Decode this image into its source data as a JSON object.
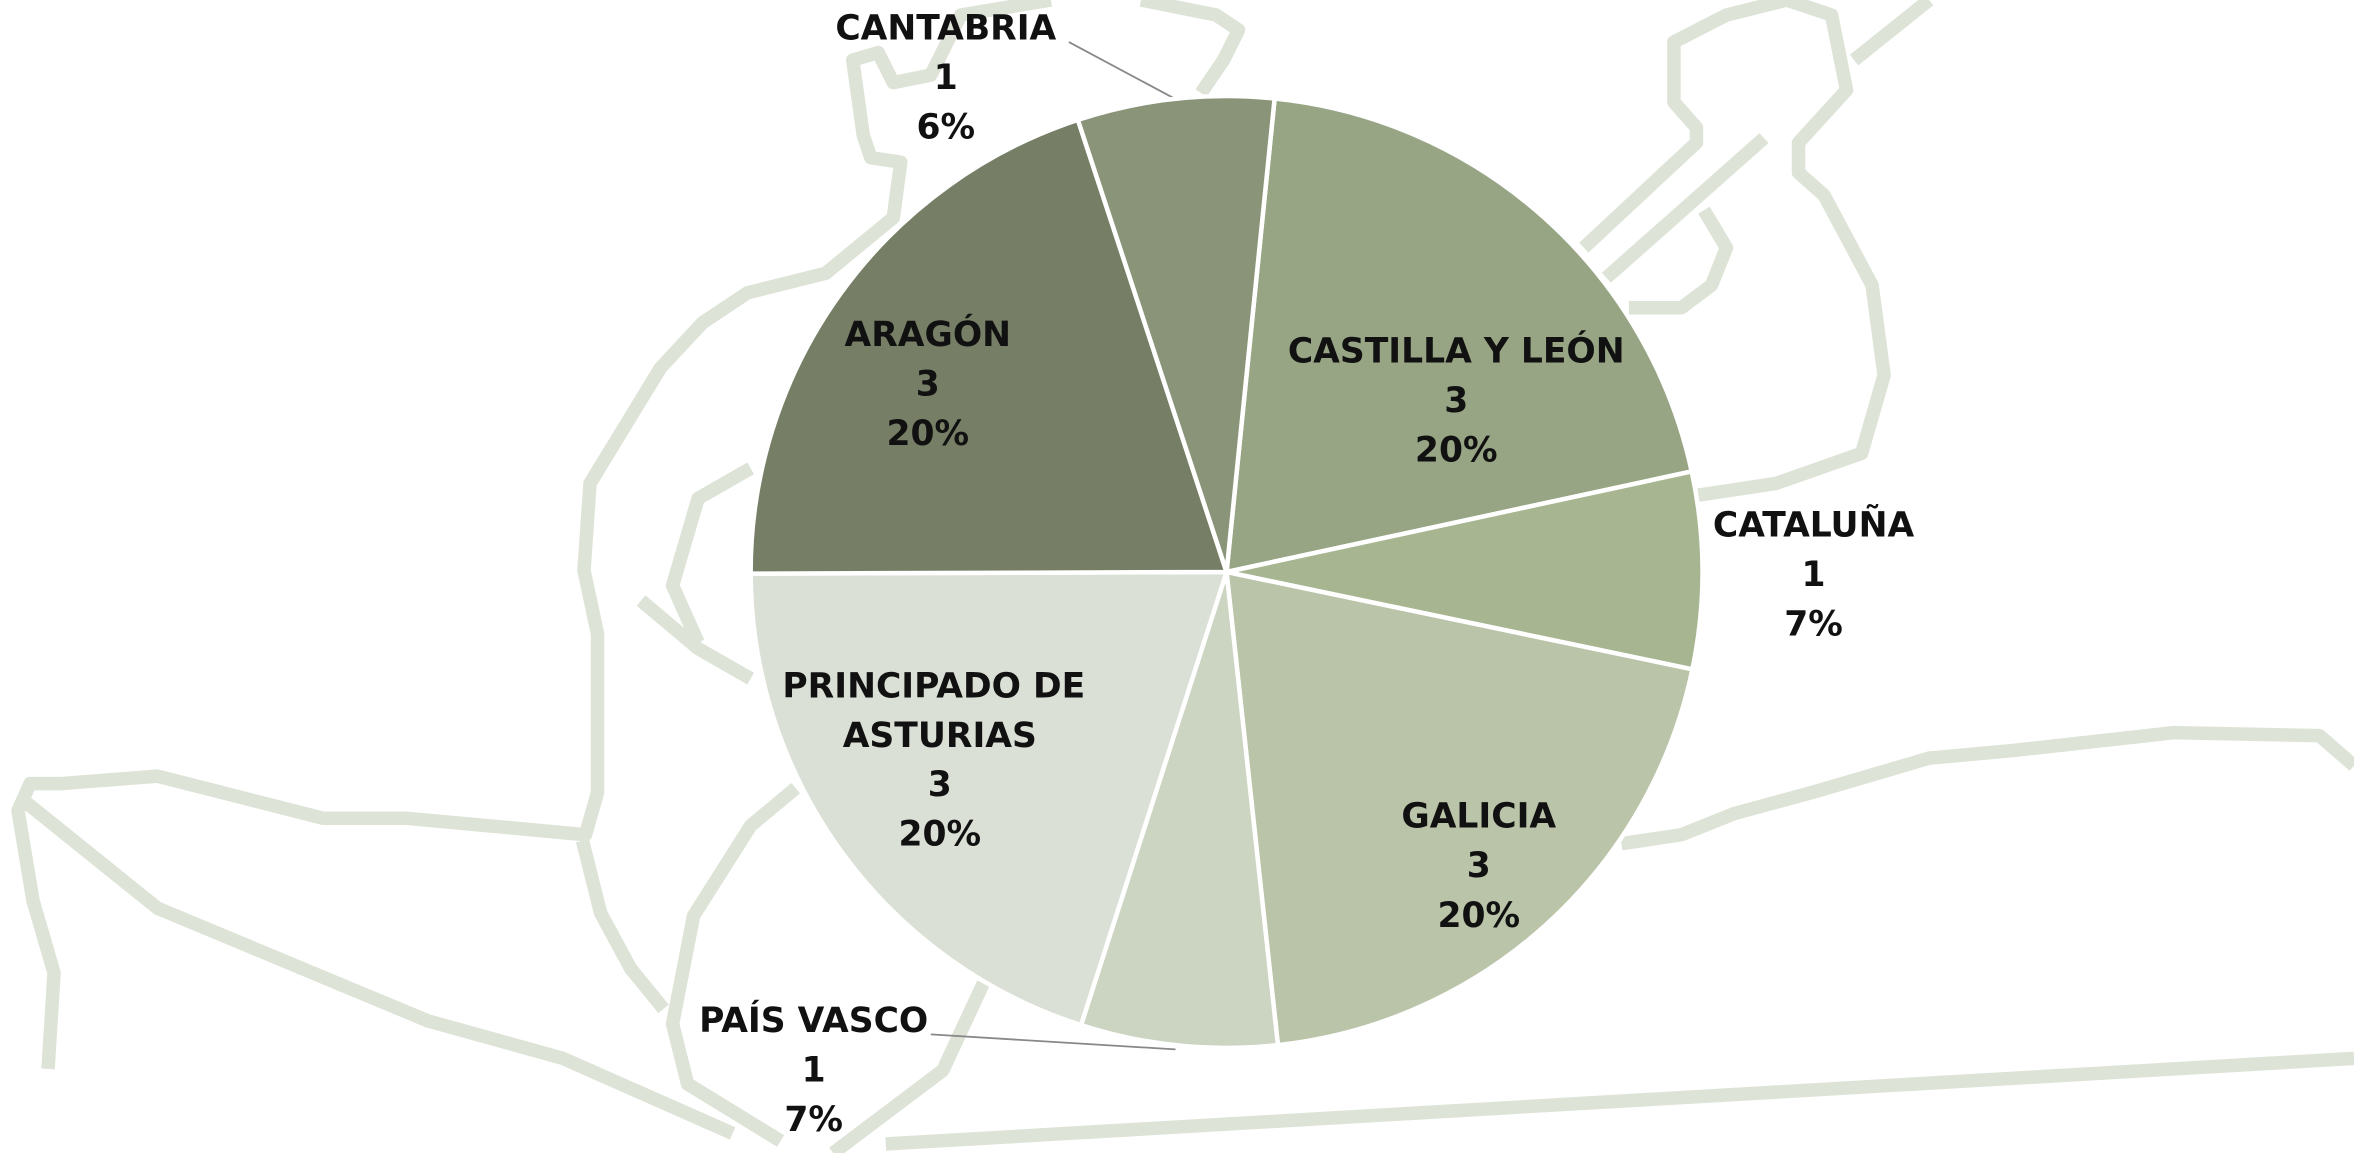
{
  "chart_data": {
    "type": "pie",
    "categories": [
      "CASTILLA Y LEÓN",
      "CATALUÑA",
      "GALICIA",
      "PAÍS VASCO",
      "PRINCIPADO DE ASTURIAS",
      "ARAGÓN",
      "CANTABRIA"
    ],
    "values": [
      3,
      1,
      3,
      1,
      3,
      3,
      1
    ],
    "percent_labels": [
      "20%",
      "7%",
      "20%",
      "7%",
      "20%",
      "20%",
      "6%"
    ],
    "colors": [
      "#97a585",
      "#a7b591",
      "#bac4a9",
      "#ccd4c2",
      "#dbe0d6",
      "#767f66",
      "#8a9478"
    ]
  }
}
